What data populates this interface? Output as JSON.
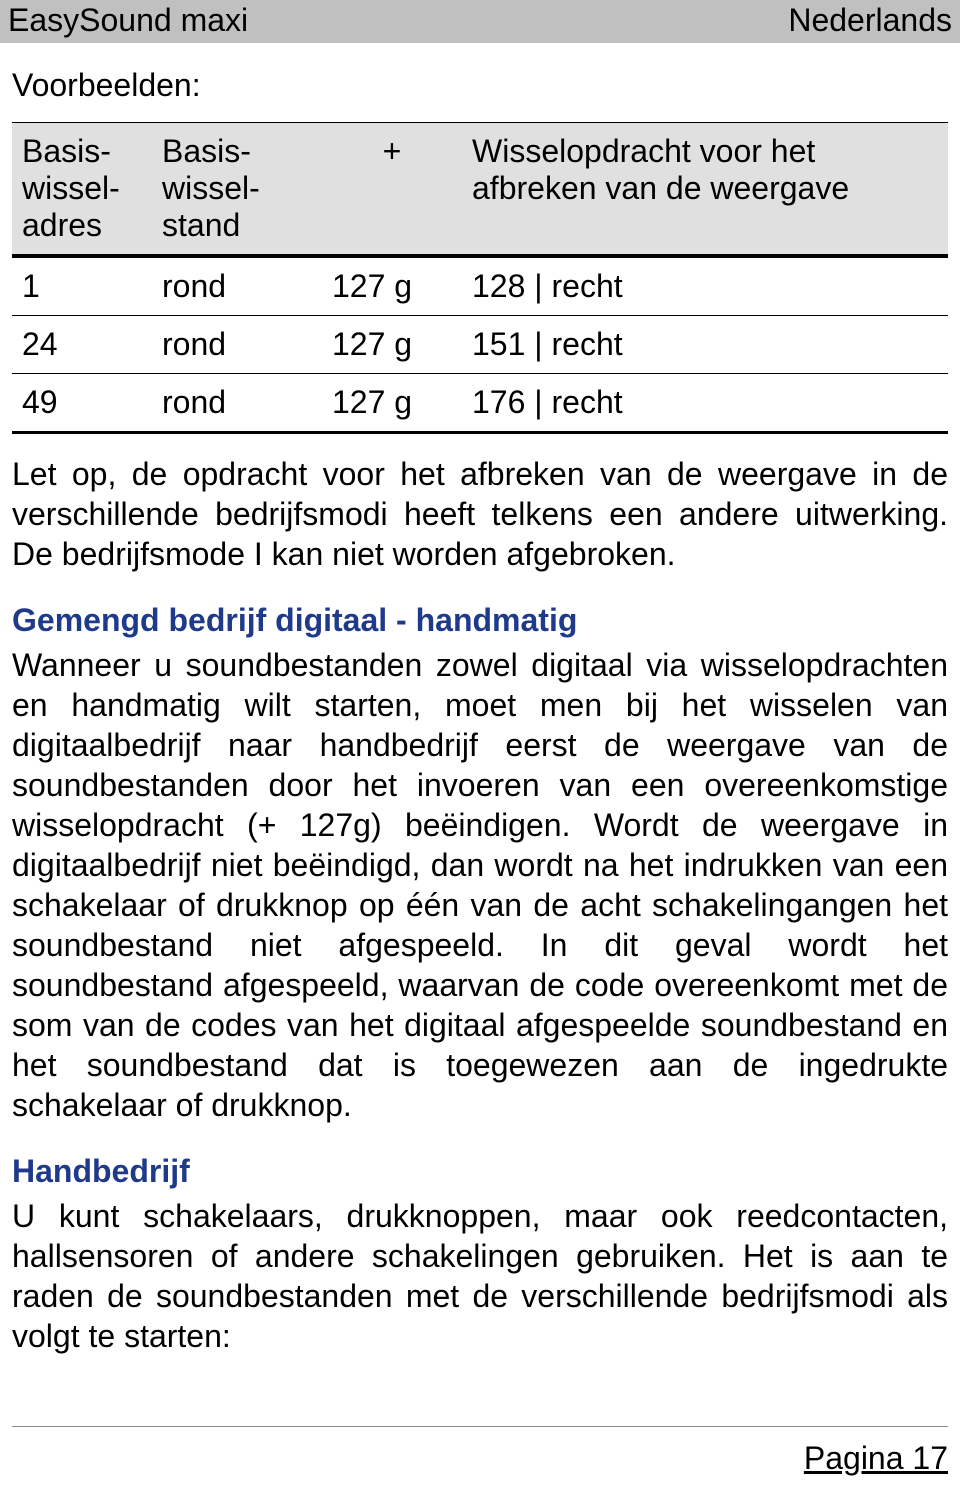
{
  "header": {
    "left": "EasySound maxi",
    "right": "Nederlands"
  },
  "voorbeelden_label": "Voorbeelden:",
  "table": {
    "headers": {
      "col_a": "Basis-\nwissel-\nadres",
      "col_b": "Basis-\nwissel-\nstand",
      "col_c": "+",
      "col_d": "Wisselopdracht voor het afbreken van de weergave"
    },
    "rows": [
      {
        "a": "1",
        "b": "rond",
        "c": "127 g",
        "d": "128 | recht"
      },
      {
        "a": "24",
        "b": "rond",
        "c": "127 g",
        "d": "151 | recht"
      },
      {
        "a": "49",
        "b": "rond",
        "c": "127 g",
        "d": "176 | recht"
      }
    ]
  },
  "para1": "Let op, de opdracht voor het afbreken van de weergave in de verschillende bedrijfsmodi heeft telkens een andere uitwerking. De bedrijfsmode I kan niet worden afgebroken.",
  "heading1": "Gemengd bedrijf digitaal - handmatig",
  "para2": "Wanneer u soundbestanden zowel digitaal via wisselopdrachten en handmatig wilt starten, moet men bij het wisselen van digitaalbedrijf naar handbedrijf eerst de weergave van de soundbestanden door het invoeren van een overeenkomstige wisselopdracht (+ 127g) beëindigen. Wordt de weergave in digitaalbedrijf niet beëindigd, dan wordt na het indrukken van een schakelaar of drukknop op één van de acht schakelingangen het soundbestand niet afgespeeld. In dit geval wordt het soundbestand afgespeeld, waarvan de code overeenkomt met de som van de codes van het digitaal afgespeelde soundbestand en het soundbestand dat is toegewezen aan de ingedrukte schakelaar of drukknop.",
  "heading2": "Handbedrijf",
  "para3": "U kunt schakelaars, drukknoppen, maar ook reedcontacten, hallsensoren of andere schakelingen gebruiken. Het is aan te raden de soundbestanden met de verschillende bedrijfsmodi als volgt te starten:",
  "footer": "Pagina 17",
  "colors": {
    "header_bg": "#c0c0c0",
    "table_header_bg": "#e0e0e0",
    "heading_color": "#1f3a8a",
    "text_color": "#000000",
    "page_bg": "#ffffff"
  }
}
